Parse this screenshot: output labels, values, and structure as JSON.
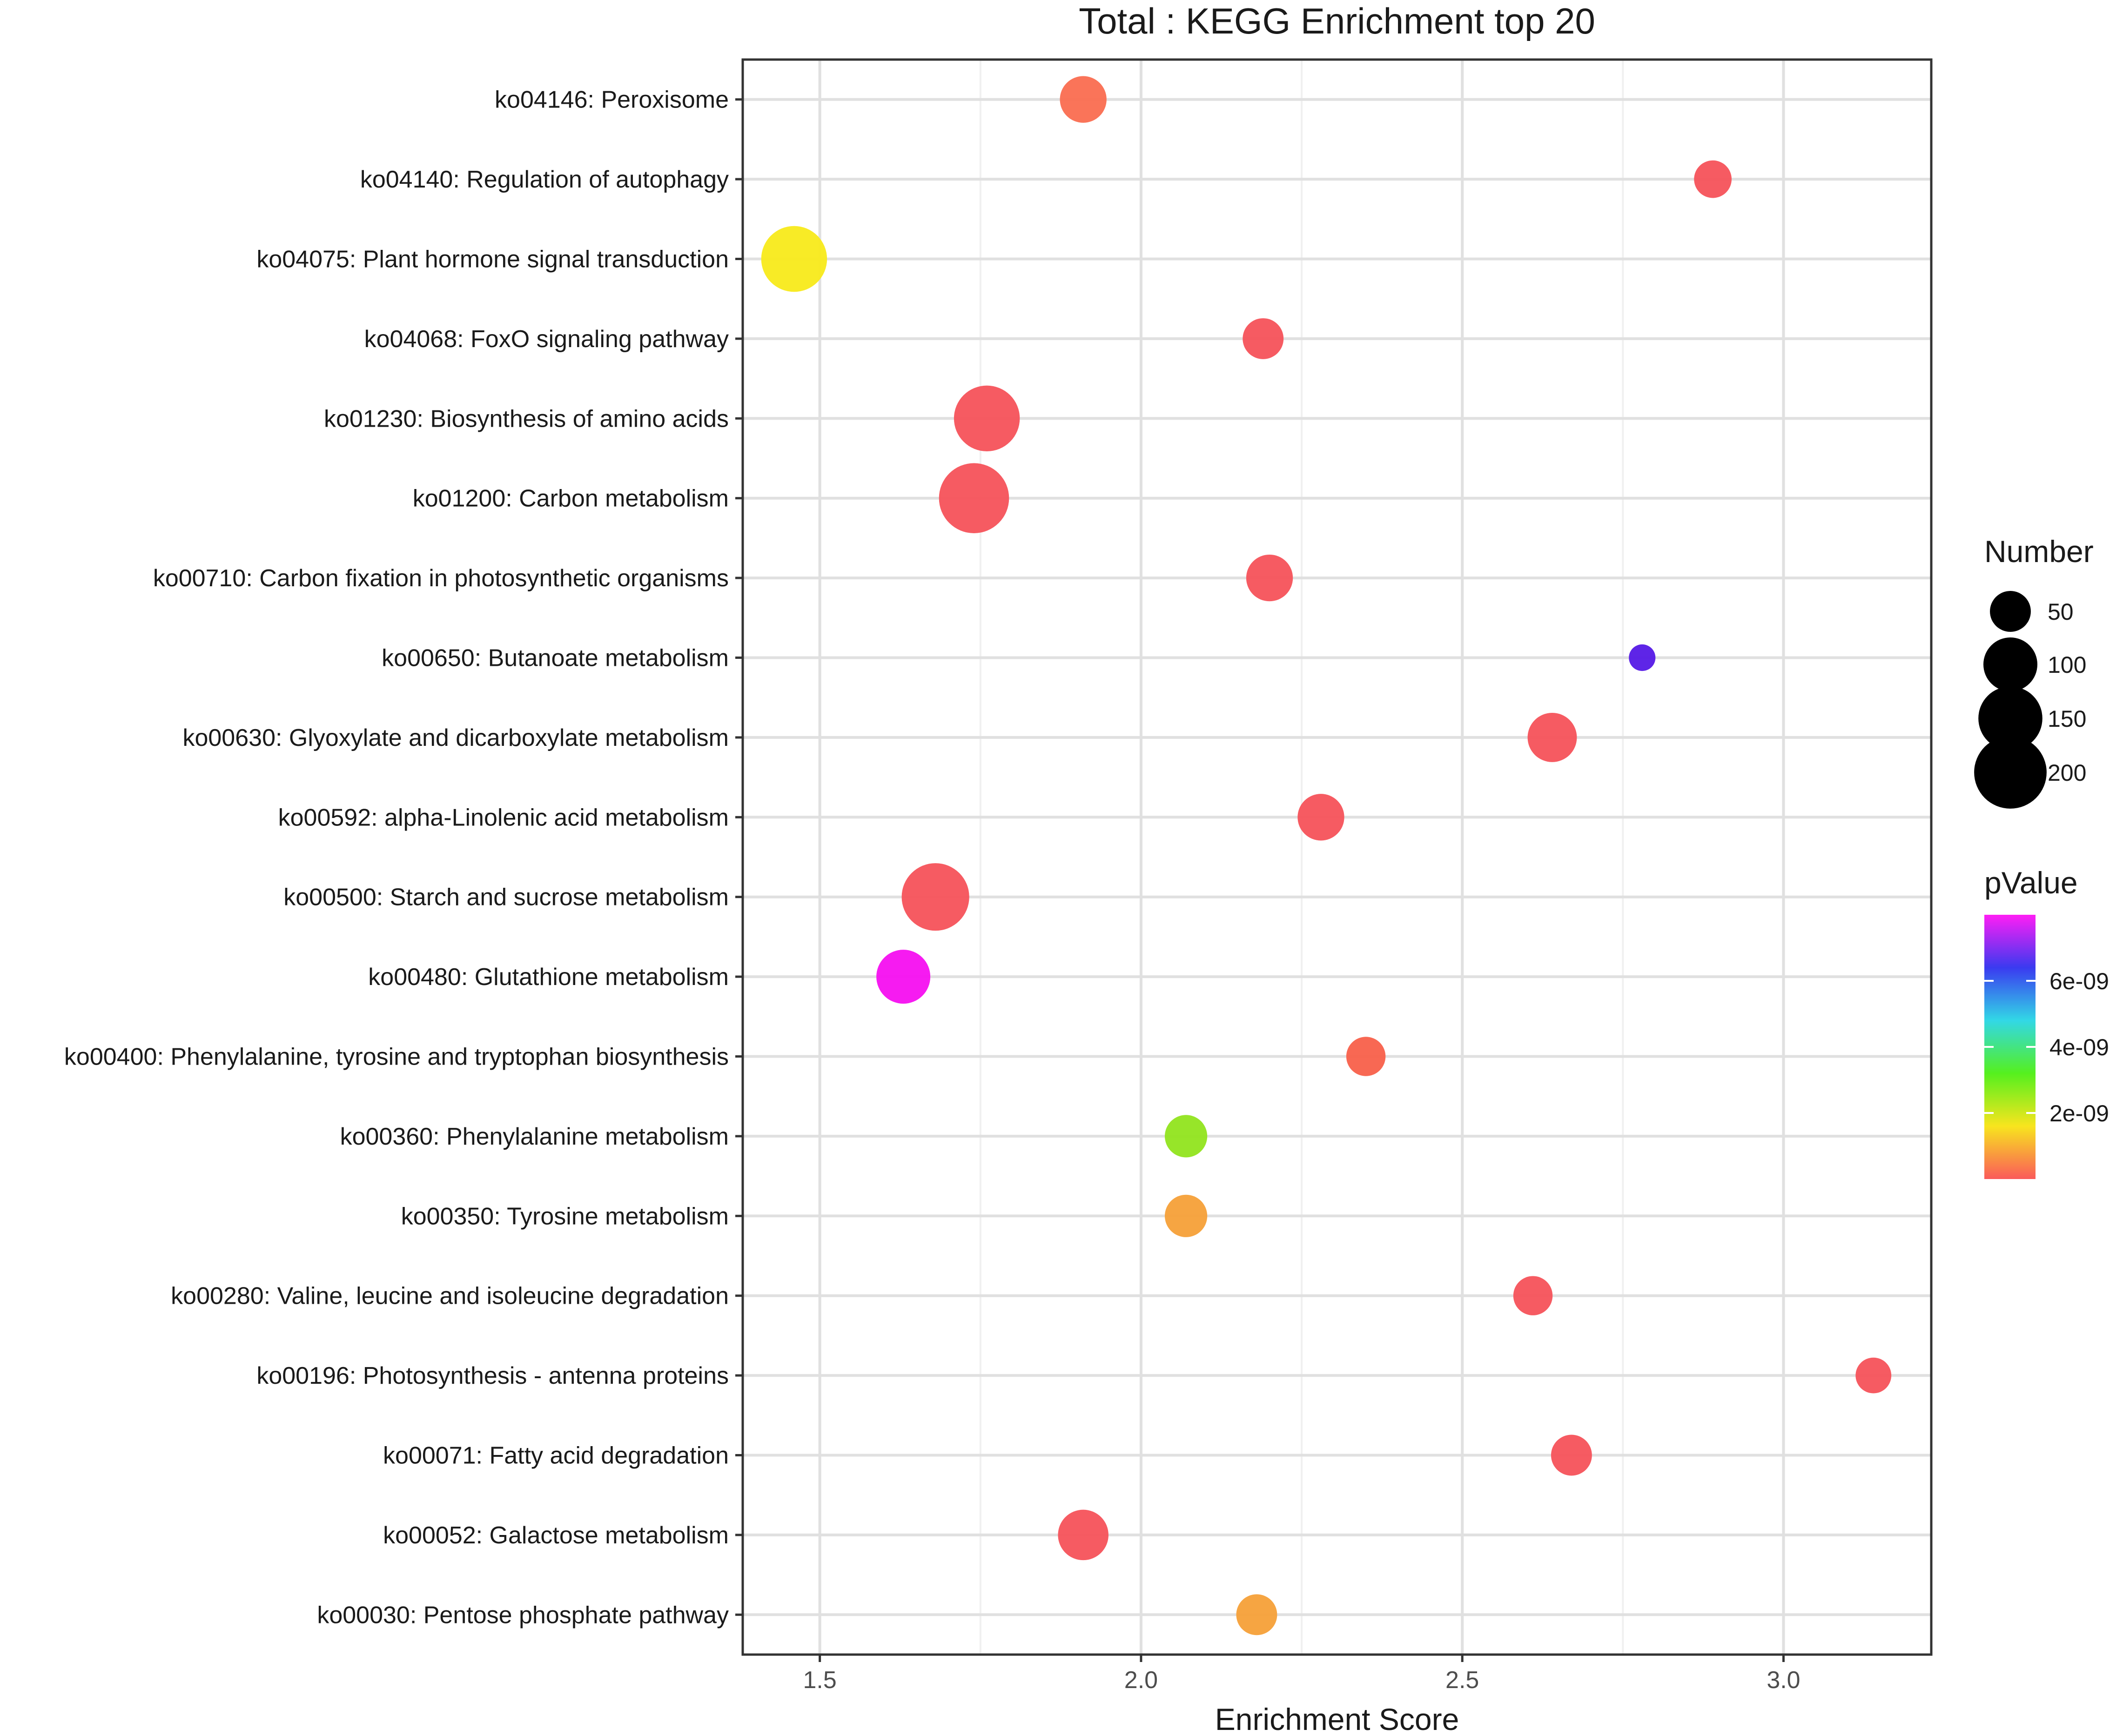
{
  "chart_data": {
    "type": "scatter",
    "title": "Total : KEGG Enrichment top 20",
    "xlabel": "Enrichment Score",
    "ylabel": "",
    "xlim": [
      1.38,
      3.23
    ],
    "xticks": [
      1.5,
      2.0,
      2.5,
      3.0
    ],
    "xtick_labels": [
      "1.5",
      "2.0",
      "2.5",
      "3.0"
    ],
    "grid": true,
    "categories": [
      "ko04146: Peroxisome",
      "ko04140: Regulation of autophagy",
      "ko04075: Plant hormone signal transduction",
      "ko04068: FoxO signaling pathway",
      "ko01230: Biosynthesis of amino acids",
      "ko01200: Carbon metabolism",
      "ko00710: Carbon fixation in photosynthetic organisms",
      "ko00650: Butanoate metabolism",
      "ko00630: Glyoxylate and dicarboxylate metabolism",
      "ko00592: alpha-Linolenic acid metabolism",
      "ko00500: Starch and sucrose metabolism",
      "ko00480: Glutathione metabolism",
      "ko00400: Phenylalanine, tyrosine and tryptophan biosynthesis",
      "ko00360: Phenylalanine metabolism",
      "ko00350: Tyrosine metabolism",
      "ko00280: Valine, leucine and isoleucine degradation",
      "ko00196: Photosynthesis - antenna proteins",
      "ko00071: Fatty acid degradation",
      "ko00052: Galactose metabolism",
      "ko00030: Pentose phosphate pathway"
    ],
    "points": [
      {
        "x": 1.91,
        "number": 70,
        "color": "#fa6d50"
      },
      {
        "x": 2.89,
        "number": 40,
        "color": "#f5525a"
      },
      {
        "x": 1.46,
        "number": 160,
        "color": "#f8ea1a"
      },
      {
        "x": 2.19,
        "number": 50,
        "color": "#f5525a"
      },
      {
        "x": 1.76,
        "number": 160,
        "color": "#f5525a"
      },
      {
        "x": 1.74,
        "number": 185,
        "color": "#f5525a"
      },
      {
        "x": 2.2,
        "number": 70,
        "color": "#f5525a"
      },
      {
        "x": 2.78,
        "number": 15,
        "color": "#5519e6"
      },
      {
        "x": 2.64,
        "number": 80,
        "color": "#f5525a"
      },
      {
        "x": 2.28,
        "number": 70,
        "color": "#f5525a"
      },
      {
        "x": 1.68,
        "number": 170,
        "color": "#f5525a"
      },
      {
        "x": 1.63,
        "number": 100,
        "color": "#f50ff0"
      },
      {
        "x": 2.35,
        "number": 45,
        "color": "#f8604a"
      },
      {
        "x": 2.07,
        "number": 55,
        "color": "#91e41e"
      },
      {
        "x": 2.07,
        "number": 55,
        "color": "#f5a038"
      },
      {
        "x": 2.61,
        "number": 45,
        "color": "#f5525a"
      },
      {
        "x": 3.14,
        "number": 35,
        "color": "#f5525a"
      },
      {
        "x": 2.67,
        "number": 50,
        "color": "#f5525a"
      },
      {
        "x": 1.91,
        "number": 85,
        "color": "#f5525a"
      },
      {
        "x": 2.18,
        "number": 50,
        "color": "#f5a038"
      }
    ],
    "size_legend": {
      "title": "Number",
      "values": [
        50,
        100,
        150,
        200
      ],
      "labels": [
        "50",
        "100",
        "150",
        "200"
      ]
    },
    "color_legend": {
      "title": "pValue",
      "ticks": [
        "6e-09",
        "4e-09",
        "2e-09"
      ],
      "tick_fractions": [
        0.75,
        0.5,
        0.25
      ],
      "gradient": [
        "#fa5a5a",
        "#f8e51e",
        "#55f01e",
        "#32d8e6",
        "#3a3af0",
        "#ff1ef5"
      ]
    }
  }
}
